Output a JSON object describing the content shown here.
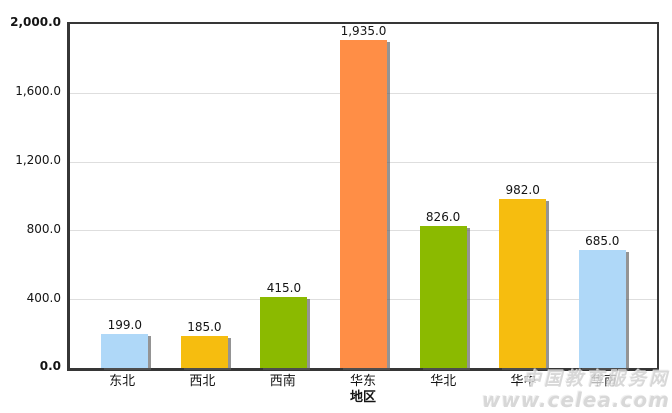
{
  "chart_data": {
    "type": "bar",
    "title": "",
    "xlabel": "地区",
    "ylabel": "",
    "categories": [
      "东北",
      "西北",
      "西南",
      "华东",
      "华北",
      "华中",
      "华南"
    ],
    "values": [
      199.0,
      185.0,
      415.0,
      1935.0,
      826.0,
      982.0,
      685.0
    ],
    "value_labels": [
      "199.0",
      "185.0",
      "415.0",
      "1,935.0",
      "826.0",
      "982.0",
      "685.0"
    ],
    "bar_colors": [
      "#AFD8F8",
      "#F6BD0F",
      "#8BBA00",
      "#FF8E46",
      "#8BBA00",
      "#F6BD0F",
      "#AFD8F8"
    ],
    "ylim": [
      0,
      2000
    ],
    "ytick_step": 400,
    "ytick_labels": [
      "2,000.0",
      "1,600.0",
      "1,200.0",
      "800.0",
      "400.0",
      "0.0"
    ],
    "grid": true,
    "legend_position": "none"
  },
  "watermark": {
    "line1": "中国教育服务网",
    "line2": "www.celea.com"
  }
}
